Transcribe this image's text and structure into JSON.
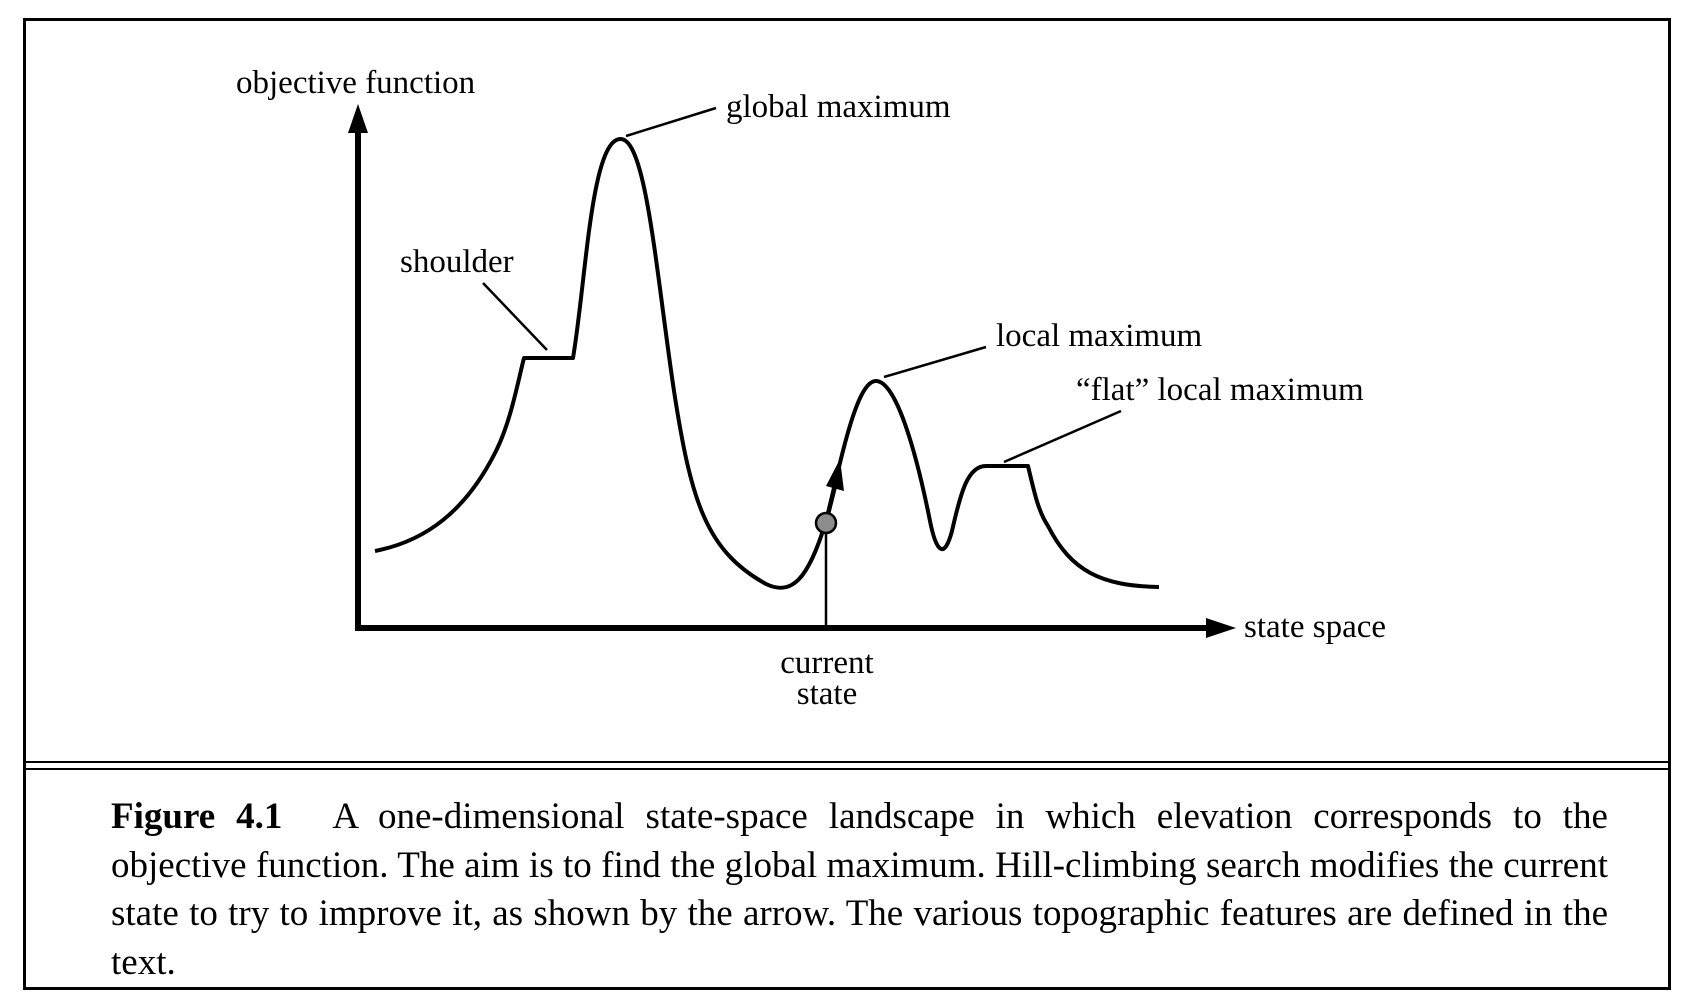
{
  "diagram": {
    "y_axis_label": "objective function",
    "x_axis_label": "state space",
    "annotations": {
      "global_maximum": "global maximum",
      "shoulder": "shoulder",
      "local_maximum": "local maximum",
      "flat_local_maximum": "“flat” local maximum",
      "current_state_line1": "current",
      "current_state_line2": "state"
    }
  },
  "caption": {
    "label": "Figure 4.1",
    "text": "A one-dimensional state-space landscape in which elevation corresponds to the objective function. The aim is to find the global maximum. Hill-climbing search modifies the current state to try to improve it, as shown by the arrow. The various topographic features are defined in the text."
  },
  "colors": {
    "ink": "#000000",
    "marker_fill": "#8c8c8c",
    "background": "#ffffff"
  }
}
